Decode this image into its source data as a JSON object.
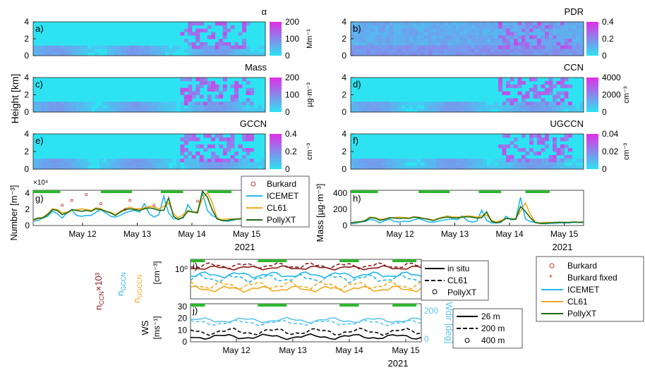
{
  "chart_data": [
    {
      "type": "heatmap",
      "panel": "a)",
      "quantity": "α",
      "unit": "Mm⁻¹",
      "colorbar_ticks": [
        "200",
        "100",
        "0"
      ],
      "ylim": [
        0,
        4
      ],
      "yticks": [
        "4",
        "2",
        "0"
      ]
    },
    {
      "type": "heatmap",
      "panel": "b)",
      "quantity": "PDR",
      "unit": "",
      "colorbar_ticks": [
        "0.4",
        "0.2",
        "0"
      ],
      "ylim": [
        0,
        4
      ],
      "yticks": [
        "4",
        "2",
        "0"
      ]
    },
    {
      "type": "heatmap",
      "panel": "c)",
      "quantity": "Mass",
      "unit": "µg·m⁻³",
      "colorbar_ticks": [
        "200",
        "100",
        "0"
      ],
      "ylim": [
        0,
        4
      ],
      "yticks": [
        "4",
        "2",
        "0"
      ]
    },
    {
      "type": "heatmap",
      "panel": "d)",
      "quantity": "CCN",
      "unit": "cm⁻³",
      "colorbar_ticks": [
        "4000",
        "2000",
        "0"
      ],
      "ylim": [
        0,
        4
      ],
      "yticks": [
        "4",
        "2",
        "0"
      ]
    },
    {
      "type": "heatmap",
      "panel": "e)",
      "quantity": "GCCN",
      "unit": "cm⁻³",
      "colorbar_ticks": [
        "0.4",
        "0.2",
        "0"
      ],
      "ylim": [
        0,
        4
      ],
      "yticks": [
        "4",
        "2",
        "0"
      ]
    },
    {
      "type": "heatmap",
      "panel": "f)",
      "quantity": "UGCCN",
      "unit": "cm⁻³",
      "colorbar_ticks": [
        "0.04",
        "0.02",
        "0"
      ],
      "ylim": [
        0,
        4
      ],
      "yticks": [
        "4",
        "2",
        "0"
      ]
    },
    {
      "type": "line",
      "panel": "g)",
      "ylabel": "Number [m⁻³]",
      "multiplier": "×10⁴",
      "yticks": [
        "4",
        "2",
        "0"
      ],
      "ylim": [
        0,
        4.2
      ],
      "x": [
        0,
        0.5,
        1,
        1.5,
        2,
        2.5,
        3,
        3.5,
        4,
        4.5,
        5,
        5.5,
        6,
        6.5,
        7,
        7.5,
        8,
        8.5,
        9,
        9.5,
        10,
        10.5,
        11,
        11.5,
        12,
        12.5,
        13,
        13.5,
        14,
        14.5,
        15,
        15.5,
        16,
        16.5,
        17,
        17.5,
        18,
        18.5,
        19,
        19.5,
        20,
        20.5,
        21,
        21.5,
        22,
        22.5,
        23,
        23.5,
        24
      ],
      "series": [
        {
          "name": "ICEMET",
          "values": [
            0.5,
            0.6,
            0.9,
            1.1,
            1.7,
            1.4,
            0.9,
            1.5,
            1.8,
            1.2,
            1.1,
            1.2,
            1.2,
            1.6,
            1.9,
            1.5,
            1.1,
            1.0,
            1.2,
            1.5,
            1.7,
            1.8,
            1.6,
            2.6,
            1.4,
            1.0,
            1.3,
            3.5,
            1.5,
            0.8,
            0.8,
            0.9,
            2.5,
            1.6,
            1.7,
            3.9,
            1.8,
            1.2,
            0.9,
            0.6,
            0.5,
            0.6,
            0.7,
            0.8,
            0.7,
            0.8,
            0.9,
            0.8,
            0.8
          ]
        },
        {
          "name": "CL61",
          "values": [
            0.6,
            0.8,
            1.0,
            1.4,
            2.0,
            1.9,
            1.5,
            1.6,
            1.8,
            1.9,
            2.0,
            1.9,
            1.8,
            2.1,
            2.0,
            1.7,
            1.6,
            1.3,
            1.7,
            2.0,
            2.2,
            2.0,
            2.0,
            2.1,
            2.3,
            2.2,
            2.0,
            2.3,
            2.7,
            1.4,
            0.9,
            1.3,
            1.8,
            1.6,
            1.7,
            3.2,
            3.9,
            2.8,
            0.9,
            0.7,
            0.8,
            0.8,
            0.7,
            0.9,
            0.8,
            0.8,
            0.9,
            0.9,
            0.8
          ]
        },
        {
          "name": "PollyXT",
          "values": [
            0.7,
            0.9,
            0.9,
            1.3,
            1.9,
            1.8,
            1.3,
            1.5,
            1.9,
            1.8,
            1.7,
            1.8,
            1.7,
            2.0,
            1.9,
            1.7,
            1.5,
            1.2,
            1.6,
            1.9,
            2.0,
            1.9,
            1.8,
            2.0,
            2.1,
            2.0,
            1.8,
            1.8,
            3.3,
            1.1,
            0.7,
            1.0,
            1.7,
            1.6,
            1.5,
            4.1,
            3.4,
            1.9,
            0.8,
            0.6,
            0.6,
            0.7,
            0.8,
            0.8,
            0.8,
            0.8,
            0.9,
            0.8,
            0.9
          ]
        },
        {
          "name": "Burkard",
          "values": [
            null,
            null,
            null,
            null,
            null,
            null,
            2.4,
            null,
            3.0,
            null,
            null,
            3.7,
            null,
            null,
            2.6,
            null,
            null,
            null,
            null,
            1.9,
            3.0,
            null,
            null,
            null,
            null,
            2.4,
            null,
            null,
            null,
            null,
            null,
            null,
            null,
            null,
            2.9,
            null,
            null,
            null,
            null,
            null,
            null,
            null,
            null,
            null,
            null,
            null,
            null,
            null,
            null
          ]
        }
      ]
    },
    {
      "type": "line",
      "panel": "h)",
      "ylabel": "Mass [µg·m⁻³]",
      "yticks": [
        "400",
        "200",
        "0"
      ],
      "ylim": [
        0,
        400
      ],
      "x": [
        0,
        0.5,
        1,
        1.5,
        2,
        2.5,
        3,
        3.5,
        4,
        4.5,
        5,
        5.5,
        6,
        6.5,
        7,
        7.5,
        8,
        8.5,
        9,
        9.5,
        10,
        10.5,
        11,
        11.5,
        12,
        12.5,
        13,
        13.5,
        14,
        14.5,
        15,
        15.5,
        16,
        16.5,
        17,
        17.5,
        18,
        18.5,
        19,
        19.5,
        20,
        20.5,
        21,
        21.5,
        22,
        22.5,
        23,
        23.5,
        24
      ],
      "series": [
        {
          "name": "ICEMET",
          "values": [
            20,
            25,
            40,
            45,
            70,
            60,
            30,
            55,
            75,
            45,
            40,
            50,
            45,
            65,
            80,
            60,
            40,
            35,
            50,
            60,
            70,
            75,
            65,
            110,
            55,
            40,
            50,
            175,
            60,
            30,
            30,
            35,
            105,
            65,
            70,
            320,
            75,
            45,
            35,
            25,
            20,
            25,
            25,
            30,
            30,
            30,
            35,
            35,
            30
          ]
        },
        {
          "name": "CL61",
          "values": [
            30,
            35,
            45,
            60,
            95,
            90,
            70,
            75,
            85,
            90,
            95,
            90,
            85,
            100,
            95,
            80,
            75,
            60,
            80,
            95,
            110,
            95,
            95,
            100,
            110,
            105,
            95,
            110,
            120,
            60,
            40,
            60,
            80,
            75,
            80,
            160,
            255,
            130,
            40,
            30,
            35,
            35,
            30,
            40,
            35,
            35,
            40,
            40,
            35
          ]
        },
        {
          "name": "PollyXT",
          "values": [
            30,
            40,
            40,
            55,
            90,
            85,
            60,
            70,
            90,
            85,
            80,
            85,
            80,
            95,
            90,
            80,
            70,
            55,
            75,
            90,
            95,
            90,
            85,
            95,
            100,
            95,
            85,
            90,
            155,
            50,
            30,
            45,
            80,
            75,
            70,
            215,
            160,
            90,
            35,
            25,
            25,
            30,
            35,
            35,
            35,
            35,
            40,
            35,
            40
          ]
        },
        {
          "name": "Burkard",
          "values": [
            null,
            null,
            null,
            null,
            null,
            null,
            null,
            null,
            null,
            null,
            null,
            null,
            null,
            null,
            null,
            null,
            null,
            null,
            null,
            null,
            null,
            null,
            null,
            null,
            null,
            null,
            null,
            null,
            null,
            null,
            null,
            null,
            null,
            null,
            null,
            null,
            null,
            null,
            null,
            null,
            null,
            null,
            null,
            null,
            null,
            null,
            null,
            null,
            null
          ]
        }
      ]
    },
    {
      "type": "line",
      "panel": "i)",
      "ylabel": "[cm⁻³]",
      "ytick": "10⁰",
      "legend": [
        "in situ",
        "CL61",
        "PollyXT"
      ]
    },
    {
      "type": "line",
      "panel": "j)",
      "ylabel": "[ms⁻¹]",
      "ylabel2": "Wdir [deg]",
      "yticks": [
        "30",
        "20",
        "10",
        "0"
      ],
      "ylim": [
        0,
        30
      ],
      "legend": [
        "26 m",
        "200 m",
        "400 m"
      ]
    }
  ],
  "labels": {
    "height": "Height [km]",
    "xticks": [
      "May 12",
      "May 13",
      "May 14",
      "May 15"
    ],
    "year": "2021",
    "ncc_label": "n",
    "ncc_sub": "CCN",
    "ncc_mult": "×10³",
    "ngccn_sub": "GCCN",
    "nugccn_sub": "UGCCN",
    "ws": "WS"
  },
  "legend_g": [
    "Burkard",
    "ICEMET",
    "CL61",
    "PollyXT"
  ],
  "legend_big": [
    "Burkard",
    "Burkard fixed",
    "ICEMET",
    "CL61",
    "PollyXT"
  ],
  "colors": {
    "icemet": "#22b7e8",
    "cl61": "#f2a91f",
    "polly": "#1a6b14",
    "burkard": "#c23a3a",
    "insitu": "#8b1a1a",
    "green": "#2fb52f",
    "cyan": "#2de3f2",
    "magenta": "#e02ee6"
  }
}
